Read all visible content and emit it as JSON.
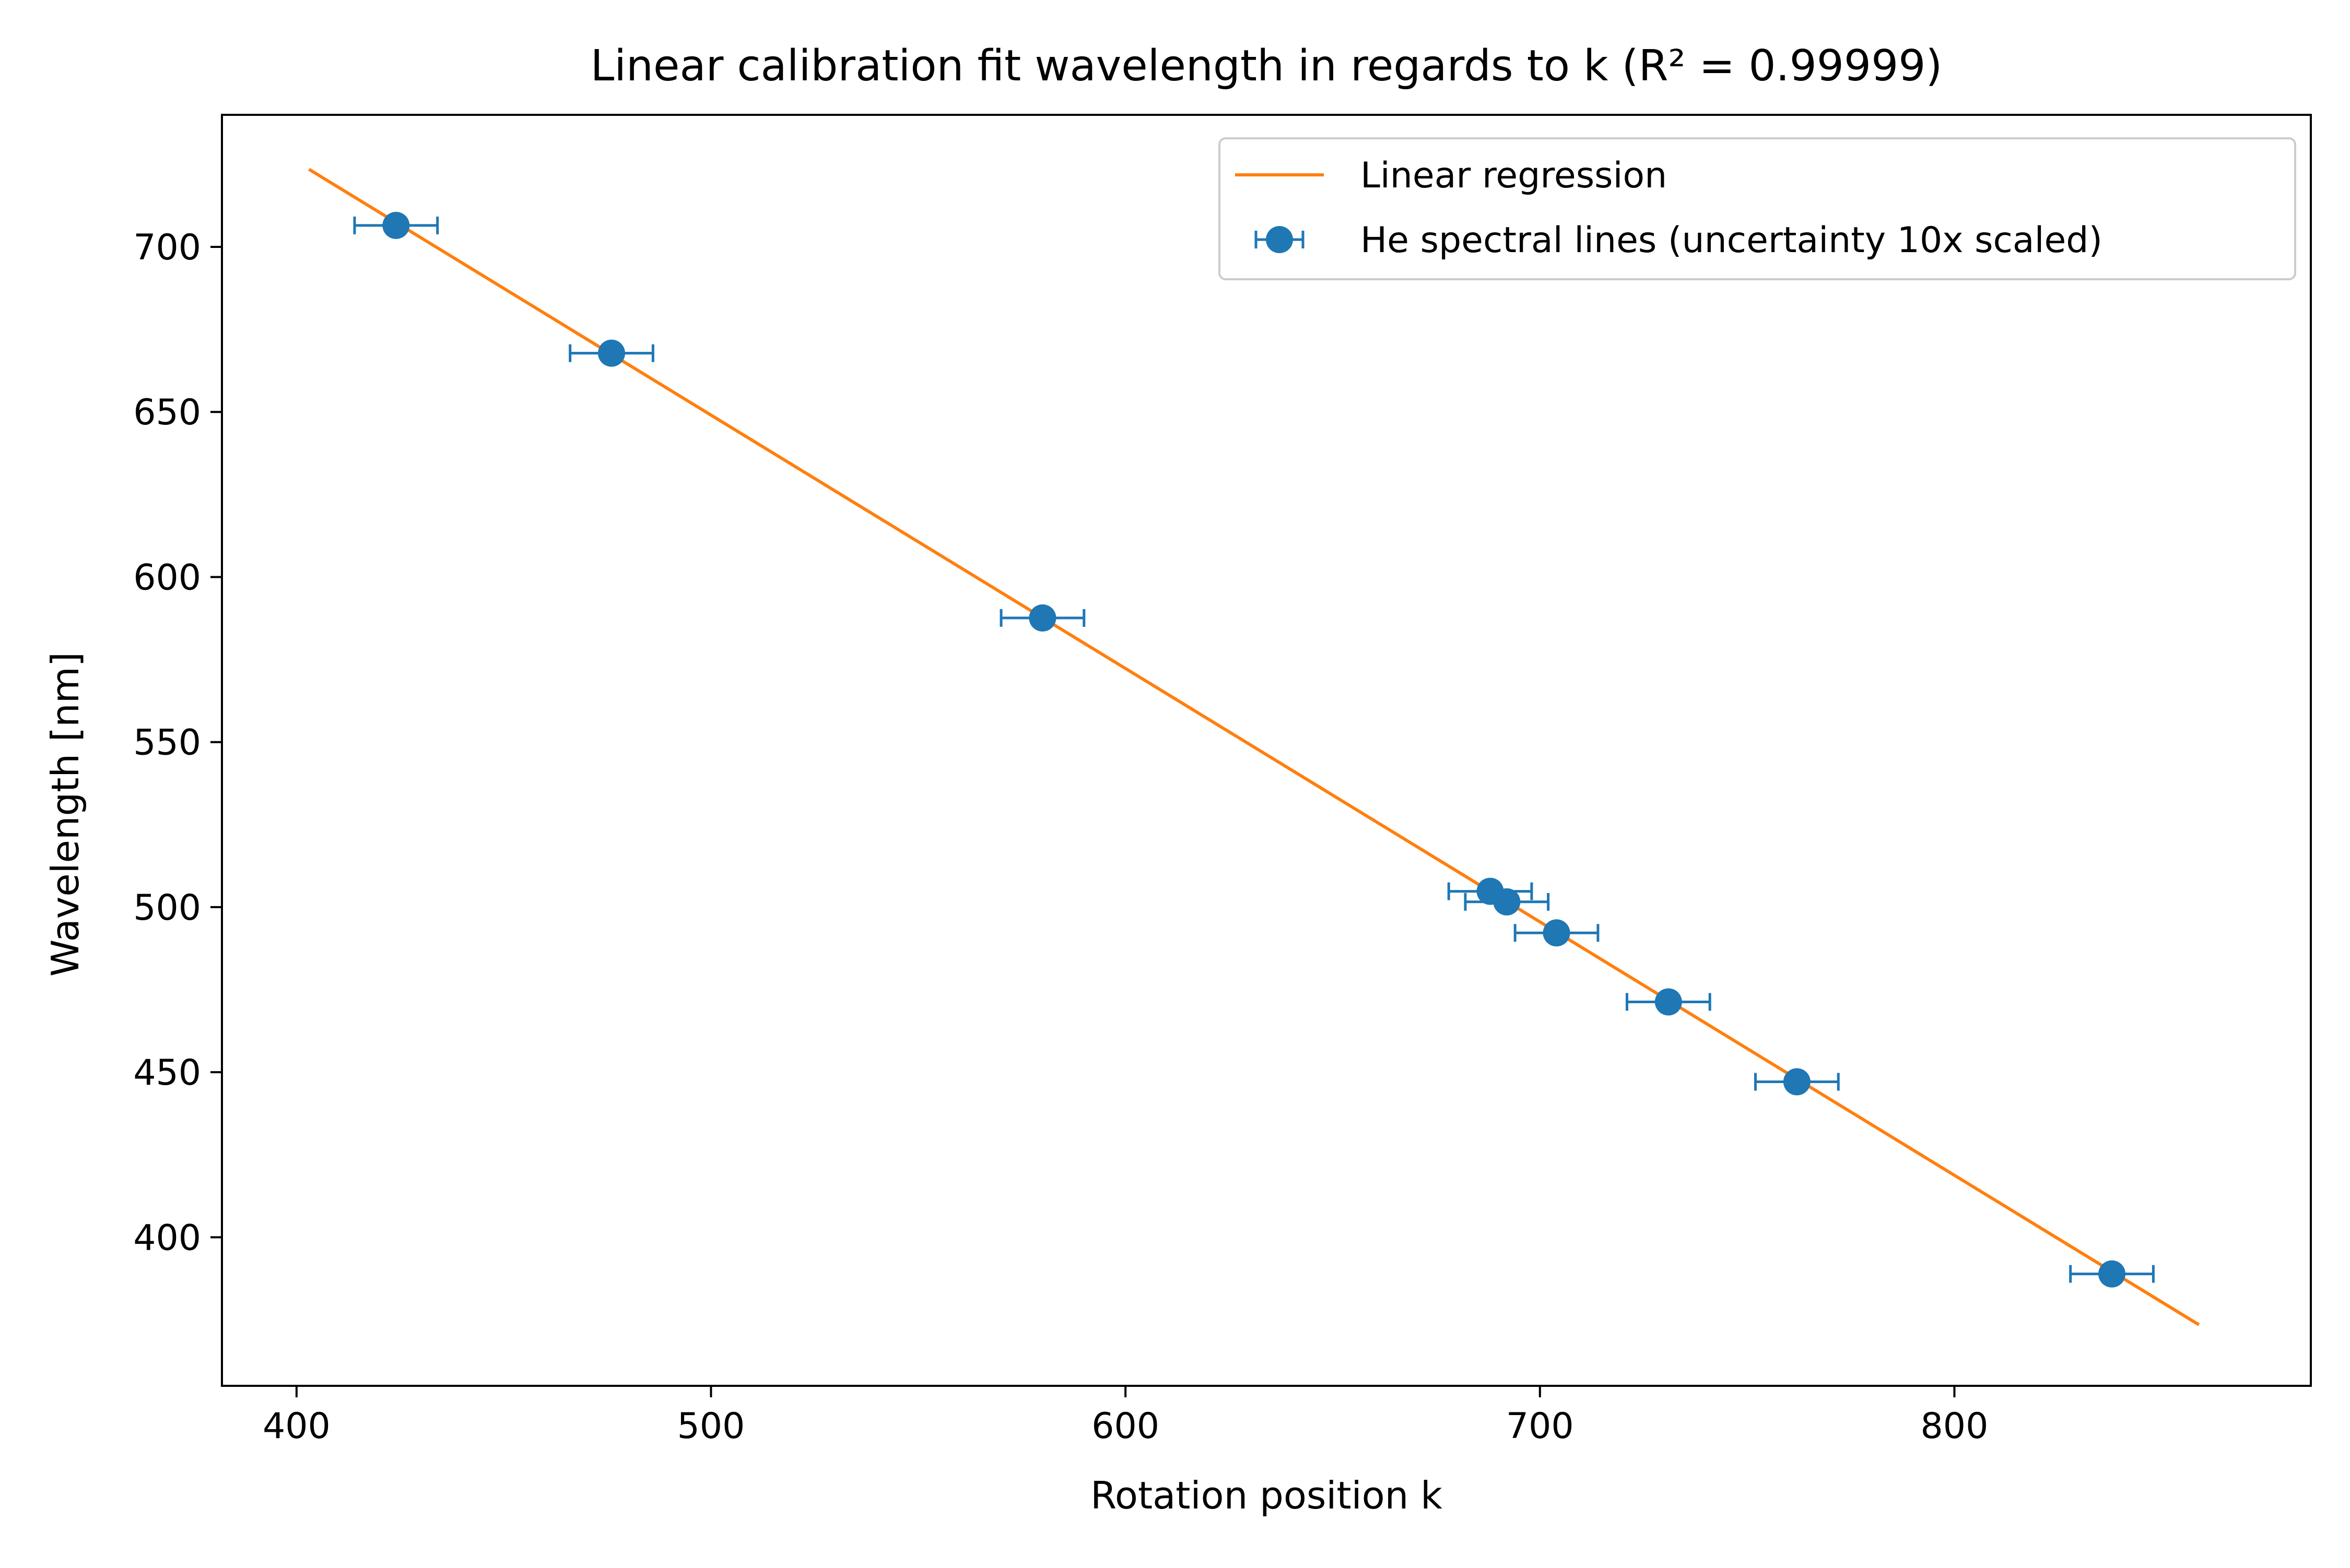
{
  "chart_data": {
    "type": "scatter",
    "title": "Linear calibration fit wavelength in regards to k (R² = 0.99999)",
    "xlabel": "Rotation position k",
    "ylabel": "Wavelength [nm]",
    "xlim": [
      382,
      886
    ],
    "ylim": [
      355,
      740
    ],
    "xticks": [
      400,
      500,
      600,
      700,
      800
    ],
    "yticks": [
      400,
      450,
      500,
      550,
      600,
      650,
      700
    ],
    "grid": false,
    "legend_position": "top-right",
    "series": [
      {
        "name": "Linear regression",
        "kind": "line",
        "color": "#ff7f0e",
        "x": [
          403,
          859
        ],
        "y": [
          723.5,
          373.5
        ]
      },
      {
        "name": "He spectral lines (uncertainty 10x scaled)",
        "kind": "errorbar",
        "color": "#1f77b4",
        "x": [
          424,
          476,
          580,
          688,
          692,
          704,
          731,
          762,
          838
        ],
        "y": [
          706.5,
          667.8,
          587.6,
          504.8,
          501.6,
          492.2,
          471.3,
          447.1,
          388.9
        ],
        "xerr": [
          10,
          10,
          10,
          10,
          10,
          10,
          10,
          10,
          10
        ]
      }
    ]
  }
}
